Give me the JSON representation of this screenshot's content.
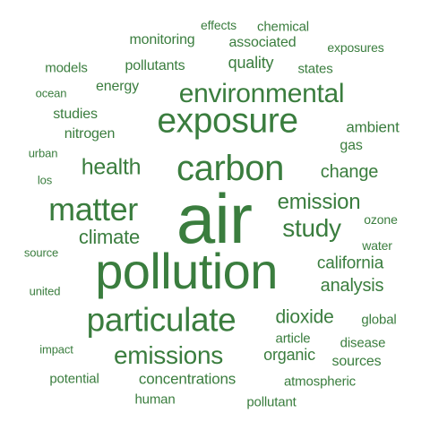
{
  "cloud": {
    "color": "#3a7d3e",
    "words": [
      {
        "text": "air",
        "weight": 100
      },
      {
        "text": "pollution",
        "weight": 70
      },
      {
        "text": "carbon",
        "weight": 47
      },
      {
        "text": "exposure",
        "weight": 46
      },
      {
        "text": "particulate",
        "weight": 44
      },
      {
        "text": "matter",
        "weight": 43
      },
      {
        "text": "environmental",
        "weight": 36
      },
      {
        "text": "emissions",
        "weight": 33
      },
      {
        "text": "study",
        "weight": 32
      },
      {
        "text": "health",
        "weight": 29
      },
      {
        "text": "emission",
        "weight": 28
      },
      {
        "text": "climate",
        "weight": 26
      },
      {
        "text": "dioxide",
        "weight": 24
      },
      {
        "text": "change",
        "weight": 23
      },
      {
        "text": "analysis",
        "weight": 23
      },
      {
        "text": "california",
        "weight": 22
      },
      {
        "text": "organic",
        "weight": 21
      },
      {
        "text": "quality",
        "weight": 21
      },
      {
        "text": "concentrations",
        "weight": 20
      },
      {
        "text": "ambient",
        "weight": 20
      },
      {
        "text": "nitrogen",
        "weight": 19
      },
      {
        "text": "pollutants",
        "weight": 19
      },
      {
        "text": "associated",
        "weight": 19
      },
      {
        "text": "monitoring",
        "weight": 18
      },
      {
        "text": "gas",
        "weight": 18
      },
      {
        "text": "energy",
        "weight": 17
      },
      {
        "text": "studies",
        "weight": 17
      },
      {
        "text": "sources",
        "weight": 17
      },
      {
        "text": "potential",
        "weight": 17
      },
      {
        "text": "human",
        "weight": 17
      },
      {
        "text": "pollutant",
        "weight": 17
      },
      {
        "text": "atmospheric",
        "weight": 16
      },
      {
        "text": "disease",
        "weight": 16
      },
      {
        "text": "states",
        "weight": 16
      },
      {
        "text": "models",
        "weight": 16
      },
      {
        "text": "chemical",
        "weight": 16
      },
      {
        "text": "global",
        "weight": 16
      },
      {
        "text": "article",
        "weight": 16
      },
      {
        "text": "effects",
        "weight": 15
      },
      {
        "text": "water",
        "weight": 15
      },
      {
        "text": "ozone",
        "weight": 15
      },
      {
        "text": "exposures",
        "weight": 15
      },
      {
        "text": "united",
        "weight": 14
      },
      {
        "text": "source",
        "weight": 14
      },
      {
        "text": "impact",
        "weight": 14
      },
      {
        "text": "los",
        "weight": 14
      },
      {
        "text": "urban",
        "weight": 14
      },
      {
        "text": "ocean",
        "weight": 14
      }
    ]
  }
}
